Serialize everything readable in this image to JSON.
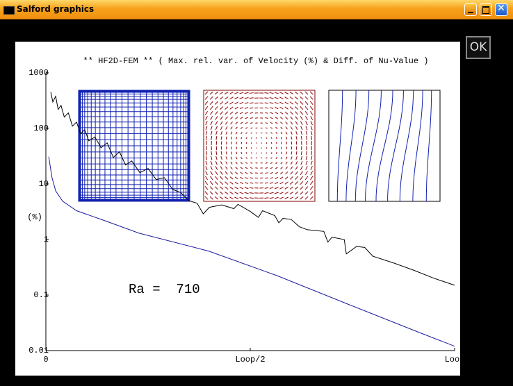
{
  "window": {
    "title": "Salford graphics",
    "button": "OK"
  },
  "chart_data": {
    "type": "line",
    "title": "** HF2D-FEM ** ( Max. rel. var. of Velocity (%) & Diff. of Nu-Value )",
    "y_label": "(%)",
    "annotation": "Ra =  710",
    "yscale": "log",
    "ylim": [
      0.01,
      1000
    ],
    "yticks": [
      1000,
      100,
      10,
      1,
      0.1,
      0.01
    ],
    "xlim": [
      0,
      1
    ],
    "xticks": [
      0,
      {
        "value": 0.5,
        "label": "Loop/2"
      },
      {
        "value": 1,
        "label": "Loop"
      }
    ],
    "series": [
      {
        "color": "#000000",
        "x": [
          0.012,
          0.017,
          0.024,
          0.03,
          0.037,
          0.045,
          0.055,
          0.065,
          0.075,
          0.085,
          0.095,
          0.105,
          0.12,
          0.135,
          0.15,
          0.165,
          0.18,
          0.195,
          0.21,
          0.23,
          0.25,
          0.27,
          0.29,
          0.31,
          0.33,
          0.35,
          0.37,
          0.385,
          0.4,
          0.43,
          0.46,
          0.47,
          0.5,
          0.52,
          0.53,
          0.56,
          0.57,
          0.58,
          0.6,
          0.62,
          0.64,
          0.68,
          0.69,
          0.7,
          0.73,
          0.735,
          0.76,
          0.78,
          0.8,
          0.85,
          0.9,
          0.95,
          1.0
        ],
        "values": [
          450,
          300,
          380,
          220,
          260,
          160,
          190,
          110,
          130,
          80,
          95,
          60,
          70,
          45,
          55,
          30,
          38,
          22,
          26,
          16,
          19,
          12,
          13,
          8,
          7,
          5,
          4.5,
          2.9,
          3.8,
          4.2,
          3.6,
          4.3,
          3.2,
          2.5,
          3.3,
          2.7,
          2.0,
          2.4,
          2.3,
          1.7,
          1.5,
          1.4,
          0.9,
          1.1,
          1.0,
          0.55,
          0.75,
          0.72,
          0.5,
          0.38,
          0.28,
          0.2,
          0.15
        ]
      },
      {
        "color": "#1a1aa0",
        "x": [
          0.007,
          0.015,
          0.024,
          0.041,
          0.075,
          0.143,
          0.228,
          0.398,
          0.568,
          0.738,
          0.908,
          1.0
        ],
        "values": [
          31,
          13,
          7.5,
          4.9,
          3.3,
          2.2,
          1.3,
          0.62,
          0.22,
          0.069,
          0.022,
          0.012
        ]
      }
    ]
  }
}
